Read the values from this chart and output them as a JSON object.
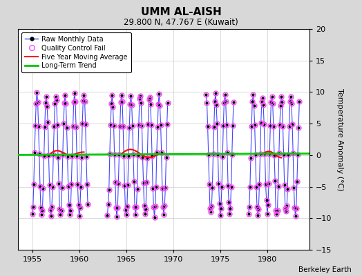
{
  "title": "UMM AL-AISH",
  "subtitle": "29.800 N, 47.767 E (Kuwait)",
  "ylabel": "Temperature Anomaly (°C)",
  "credit": "Berkeley Earth",
  "ylim": [
    -15,
    20
  ],
  "xlim": [
    1953.5,
    1984.5
  ],
  "xticks": [
    1955,
    1960,
    1965,
    1970,
    1975,
    1980
  ],
  "yticks": [
    -15,
    -10,
    -5,
    0,
    5,
    10,
    15,
    20
  ],
  "bg_color": "#d8d8d8",
  "plot_bg_color": "#ffffff",
  "raw_line_color": "#4444ff",
  "raw_marker_color": "#000000",
  "qc_marker_color": "#ff44ff",
  "moving_avg_color": "#ff0000",
  "trend_color": "#00cc00",
  "segments": [
    {
      "start": 1955.0,
      "end": 1961.0
    },
    {
      "start": 1963.0,
      "end": 1969.5
    },
    {
      "start": 1973.5,
      "end": 1976.5
    },
    {
      "start": 1978.0,
      "end": 1983.5
    }
  ],
  "moving_avg_segments": [
    {
      "start": 1957.0,
      "end": 1960.5
    },
    {
      "start": 1964.5,
      "end": 1968.5
    },
    {
      "start": 1979.5,
      "end": 1981.5
    }
  ],
  "amplitude": 9.5,
  "grid_color": "#cccccc"
}
